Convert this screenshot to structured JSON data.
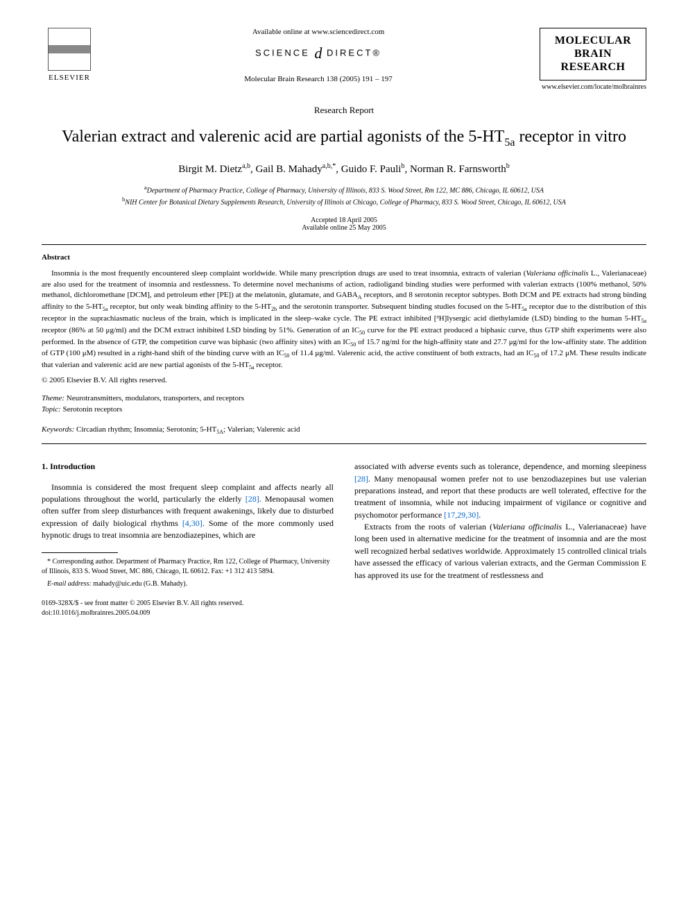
{
  "header": {
    "available_online": "Available online at www.sciencedirect.com",
    "science_direct_pre": "SCIENCE",
    "science_direct_at": "d",
    "science_direct_post": "DIRECT®",
    "citation": "Molecular Brain Research 138 (2005) 191 – 197",
    "elsevier_label": "ELSEVIER",
    "journal_title_l1": "MOLECULAR",
    "journal_title_l2": "BRAIN",
    "journal_title_l3": "RESEARCH",
    "journal_url": "www.elsevier.com/locate/molbrainres"
  },
  "article": {
    "report_type": "Research Report",
    "title_pre": "Valerian extract and valerenic acid are partial agonists of the 5-HT",
    "title_sub": "5a",
    "title_post": " receptor in vitro",
    "authors_html": "Birgit M. Dietz<sup>a,b</sup>, Gail B. Mahady<sup>a,b,*</sup>, Guido F. Pauli<sup>b</sup>, Norman R. Farnsworth<sup>b</sup>",
    "affiliation_a": "Department of Pharmacy Practice, College of Pharmacy, University of Illinois, 833 S. Wood Street, Rm 122, MC 886, Chicago, IL 60612, USA",
    "affiliation_b": "NIH Center for Botanical Dietary Supplements Research, University of Illinois at Chicago, College of Pharmacy, 833 S. Wood Street, Chicago, IL 60612, USA",
    "accepted": "Accepted 18 April 2005",
    "available_online_date": "Available online 25 May 2005"
  },
  "abstract": {
    "label": "Abstract",
    "body": "Insomnia is the most frequently encountered sleep complaint worldwide. While many prescription drugs are used to treat insomnia, extracts of valerian (Valeriana officinalis L., Valerianaceae) are also used for the treatment of insomnia and restlessness. To determine novel mechanisms of action, radioligand binding studies were performed with valerian extracts (100% methanol, 50% methanol, dichloromethane [DCM], and petroleum ether [PE]) at the melatonin, glutamate, and GABA_A receptors, and 8 serotonin receptor subtypes. Both DCM and PE extracts had strong binding affinity to the 5-HT_5a receptor, but only weak binding affinity to the 5-HT_2b and the serotonin transporter. Subsequent binding studies focused on the 5-HT_5a receptor due to the distribution of this receptor in the suprachiasmatic nucleus of the brain, which is implicated in the sleep–wake cycle. The PE extract inhibited [³H]lysergic acid diethylamide (LSD) binding to the human 5-HT_5a receptor (86% at 50 μg/ml) and the DCM extract inhibited LSD binding by 51%. Generation of an IC_50 curve for the PE extract produced a biphasic curve, thus GTP shift experiments were also performed. In the absence of GTP, the competition curve was biphasic (two affinity sites) with an IC_50 of 15.7 ng/ml for the high-affinity state and 27.7 μg/ml for the low-affinity state. The addition of GTP (100 μM) resulted in a right-hand shift of the binding curve with an IC_50 of 11.4 μg/ml. Valerenic acid, the active constituent of both extracts, had an IC_50 of 17.2 μM. These results indicate that valerian and valerenic acid are new partial agonists of the 5-HT_5a receptor.",
    "copyright": "© 2005 Elsevier B.V. All rights reserved."
  },
  "meta": {
    "theme_label": "Theme:",
    "theme": " Neurotransmitters, modulators, transporters, and receptors",
    "topic_label": "Topic:",
    "topic": " Serotonin receptors",
    "keywords_label": "Keywords:",
    "keywords": " Circadian rhythm; Insomnia; Serotonin; 5-HT_5A; Valerian; Valerenic acid"
  },
  "section": {
    "heading": "1. Introduction",
    "col1_p1_a": "Insomnia is considered the most frequent sleep complaint and affects nearly all populations throughout the world, particularly the elderly ",
    "col1_p1_ref1": "[28]",
    "col1_p1_b": ". Menopausal women often suffer from sleep disturbances with frequent awakenings, likely due to disturbed expression of daily biological rhythms ",
    "col1_p1_ref2": "[4,30]",
    "col1_p1_c": ". Some of the more commonly used hypnotic drugs to treat insomnia are benzodiazepines, which are",
    "col2_p1_a": "associated with adverse events such as tolerance, dependence, and morning sleepiness ",
    "col2_p1_ref1": "[28]",
    "col2_p1_b": ". Many menopausal women prefer not to use benzodiazepines but use valerian preparations instead, and report that these products are well tolerated, effective for the treatment of insomnia, while not inducing impairment of vigilance or cognitive and psychomotor performance ",
    "col2_p1_ref2": "[17,29,30]",
    "col2_p1_c": ".",
    "col2_p2_a": "Extracts from the roots of valerian (",
    "col2_p2_ital": "Valeriana officinalis",
    "col2_p2_b": " L., Valerianaceae) have long been used in alternative medicine for the treatment of insomnia and are the most well recognized herbal sedatives worldwide. Approximately 15 controlled clinical trials have assessed the efficacy of various valerian extracts, and the German Commission E has approved its use for the treatment of restlessness and"
  },
  "footnotes": {
    "corresponding": "* Corresponding author. Department of Pharmacy Practice, Rm 122, College of Pharmacy, University of Illinois, 833 S. Wood Street, MC 886, Chicago, IL 60612. Fax: +1 312 413 5894.",
    "email_label": "E-mail address:",
    "email": " mahady@uic.edu (G.B. Mahady)."
  },
  "footer": {
    "issn": "0169-328X/$ - see front matter © 2005 Elsevier B.V. All rights reserved.",
    "doi": "doi:10.1016/j.molbrainres.2005.04.009"
  }
}
